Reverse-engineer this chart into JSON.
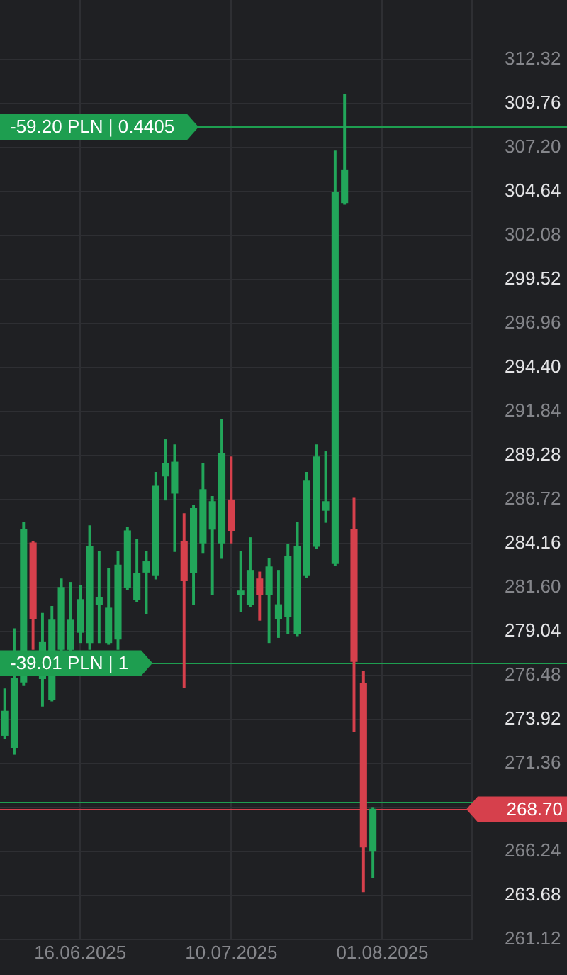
{
  "chart_data": {
    "type": "candlestick",
    "categories": [
      null,
      null,
      null,
      null,
      null,
      null,
      null,
      null,
      "16.06.2025",
      null,
      null,
      null,
      null,
      null,
      null,
      null,
      null,
      null,
      null,
      null,
      null,
      null,
      null,
      null,
      "10.07.2025",
      null,
      null,
      null,
      null,
      null,
      null,
      null,
      null,
      null,
      null,
      null,
      null,
      null,
      null,
      null,
      "01.08.2025",
      null,
      null,
      null,
      null,
      null,
      null,
      null,
      null,
      null
    ],
    "ohlc": [
      [
        273.0,
        275.7,
        272.8,
        274.4
      ],
      [
        272.3,
        279.2,
        271.9,
        276.3
      ],
      [
        276.1,
        285.4,
        275.9,
        285.0
      ],
      [
        284.2,
        284.3,
        278.0,
        279.8
      ],
      [
        276.3,
        280.1,
        274.7,
        278.4
      ],
      [
        275.1,
        280.5,
        275.0,
        279.7
      ],
      [
        278.0,
        282.1,
        277.9,
        281.6
      ],
      [
        278.0,
        281.9,
        277.9,
        279.7
      ],
      [
        279.0,
        281.7,
        278.4,
        280.9
      ],
      [
        278.4,
        285.2,
        278.0,
        284.0
      ],
      [
        280.6,
        283.7,
        278.4,
        281.0
      ],
      [
        278.4,
        282.7,
        278.3,
        280.4
      ],
      [
        278.6,
        283.7,
        278.0,
        282.9
      ],
      [
        281.6,
        285.1,
        281.5,
        284.9
      ],
      [
        280.9,
        284.4,
        280.8,
        282.4
      ],
      [
        282.5,
        283.7,
        280.1,
        283.1
      ],
      [
        282.3,
        288.3,
        282.1,
        287.5
      ],
      [
        288.1,
        290.2,
        286.7,
        288.8
      ],
      [
        287.1,
        289.9,
        283.7,
        288.9
      ],
      [
        284.3,
        285.9,
        275.8,
        282.0
      ],
      [
        282.5,
        286.4,
        280.6,
        286.2
      ],
      [
        284.2,
        288.8,
        283.6,
        287.3
      ],
      [
        285.0,
        286.9,
        281.2,
        286.6
      ],
      [
        284.2,
        291.4,
        283.3,
        289.4
      ],
      [
        286.7,
        289.2,
        284.2,
        284.9
      ],
      [
        281.2,
        283.7,
        280.2,
        281.4
      ],
      [
        280.6,
        284.5,
        280.5,
        282.6
      ],
      [
        282.1,
        282.5,
        279.7,
        281.2
      ],
      [
        281.2,
        283.3,
        278.4,
        282.8
      ],
      [
        279.8,
        282.6,
        278.7,
        280.6
      ],
      [
        279.9,
        284.1,
        278.9,
        283.4
      ],
      [
        278.9,
        285.4,
        278.8,
        284.0
      ],
      [
        282.3,
        288.3,
        282.2,
        287.8
      ],
      [
        284.0,
        289.9,
        283.9,
        289.2
      ],
      [
        286.1,
        289.5,
        285.4,
        286.6
      ],
      [
        283.0,
        307.0,
        282.9,
        304.6
      ],
      [
        304.0,
        310.3,
        303.9,
        305.9
      ],
      [
        285.0,
        286.8,
        273.2,
        277.3
      ],
      [
        276.0,
        276.7,
        263.9,
        266.5
      ],
      [
        266.3,
        268.8,
        264.7,
        268.7
      ],
      null,
      null,
      null,
      null,
      null,
      null,
      null,
      null,
      null,
      null
    ],
    "colors": [
      "#22a65a",
      "#22a65a",
      "#22a65a",
      "#d6404c",
      "#22a65a",
      "#22a65a",
      "#22a65a",
      "#22a65a",
      "#22a65a",
      "#22a65a",
      "#22a65a",
      "#22a65a",
      "#22a65a",
      "#22a65a",
      "#22a65a",
      "#22a65a",
      "#22a65a",
      "#22a65a",
      "#22a65a",
      "#d6404c",
      "#22a65a",
      "#22a65a",
      "#22a65a",
      "#22a65a",
      "#d6404c",
      "#22a65a",
      "#22a65a",
      "#d6404c",
      "#22a65a",
      "#22a65a",
      "#22a65a",
      "#22a65a",
      "#22a65a",
      "#22a65a",
      "#22a65a",
      "#22a65a",
      "#22a65a",
      "#d6404c",
      "#d6404c",
      "#22a65a",
      null,
      null,
      null,
      null,
      null,
      null,
      null,
      null,
      null,
      null
    ],
    "ylim": [
      261.12,
      315.79
    ],
    "yticks": [
      261.12,
      263.68,
      266.24,
      {
        "value": 268.8,
        "label": null
      },
      271.36,
      273.92,
      276.48,
      279.04,
      {
        "value": 281.6,
        "label": "281.60"
      },
      284.16,
      286.72,
      289.28,
      291.84,
      {
        "value": 294.4,
        "label": "294.40"
      },
      296.96,
      299.52,
      302.08,
      304.64,
      {
        "value": 307.2,
        "label": "307.20"
      },
      309.76,
      312.32
    ],
    "grid": true,
    "ref_lines": [
      {
        "axis": "y",
        "value": 308.4,
        "label": "-59.20 PLN | 0.4405",
        "color": "#1e9e50"
      },
      {
        "axis": "y",
        "value": 277.2,
        "label": "-39.01 PLN | 1",
        "color": "#1e9e50"
      },
      {
        "axis": "y",
        "value": 269.1,
        "color": "#1e9e50"
      },
      {
        "axis": "y",
        "value": 268.7,
        "color": "#d6404c"
      }
    ],
    "annotations": [
      {
        "text": "268.70",
        "y": 268.7
      }
    ]
  }
}
